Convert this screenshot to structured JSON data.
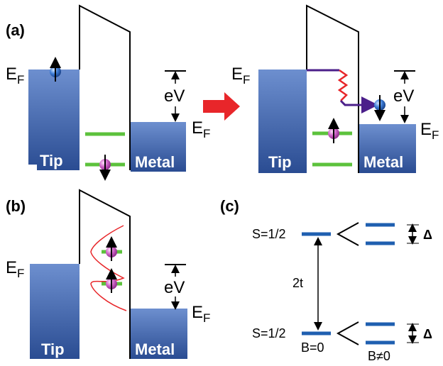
{
  "panels": {
    "a": {
      "label": "(a)",
      "left": {
        "tip": "Tip",
        "metal": "Metal",
        "bias": "eV",
        "ef_left": {
          "main": "E",
          "sub": "F"
        },
        "ef_right": {
          "main": "E",
          "sub": "F"
        }
      },
      "right": {
        "tip": "Tip",
        "metal": "Metal",
        "bias": "eV",
        "ef_left": {
          "main": "E",
          "sub": "F"
        },
        "ef_right": {
          "main": "E",
          "sub": "F"
        }
      }
    },
    "b": {
      "label": "(b)",
      "tip": "Tip",
      "metal": "Metal",
      "bias": "eV",
      "ef_left": {
        "main": "E",
        "sub": "F"
      },
      "ef_right": {
        "main": "E",
        "sub": "F"
      }
    },
    "c": {
      "label": "(c)",
      "coupling": "2t",
      "upper": {
        "spin": "S=1/2",
        "split": "Δ"
      },
      "lower": {
        "spin": "S=1/2",
        "split": "Δ",
        "field_zero": "B=0",
        "field_nonzero": "B≠0"
      }
    }
  }
}
